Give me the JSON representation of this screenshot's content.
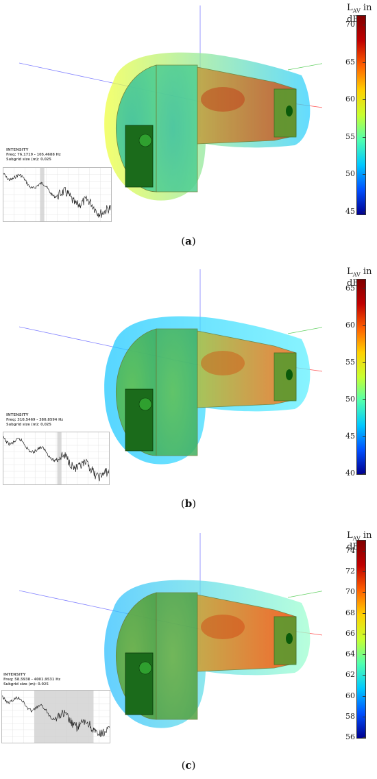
{
  "panels": [
    {
      "id": "a",
      "caption_letter": "a",
      "info_title": "INTENSITY",
      "info_freq": "Freq: 76.1719 - 105.4688 Hz",
      "info_subgrid": "Subgrid size (m): 0.025",
      "colorbar_label": "L",
      "colorbar_sub": "AV",
      "colorbar_unit": " in dB",
      "colorbar_ticks": [
        "70",
        "65",
        "60",
        "55",
        "50",
        "45"
      ],
      "scheme": "a",
      "band": [
        0.34,
        0.38
      ]
    },
    {
      "id": "b",
      "caption_letter": "b",
      "info_title": "INTENSITY",
      "info_freq": "Freq: 310.5469 - 380.8594 Hz",
      "info_subgrid": "Subgrid size (m): 0.025",
      "colorbar_label": "L",
      "colorbar_sub": "AV",
      "colorbar_unit": " in dB",
      "colorbar_ticks": [
        "65",
        "60",
        "55",
        "50",
        "45",
        "40"
      ],
      "scheme": "b",
      "band": [
        0.51,
        0.55
      ]
    },
    {
      "id": "c",
      "caption_letter": "c",
      "info_title": "INTENSITY",
      "info_freq": "Freq: 58.5938 - 4001.9531 Hz",
      "info_subgrid": "Subgrid size (m): 0.025",
      "colorbar_label": "L",
      "colorbar_sub": "AV",
      "colorbar_unit": " in dB",
      "colorbar_ticks": [
        "74",
        "72",
        "70",
        "68",
        "66",
        "64",
        "62",
        "60",
        "58",
        "56"
      ],
      "scheme": "c",
      "band": [
        0.3,
        0.85
      ]
    }
  ],
  "colors": {
    "jet": [
      "#00008f",
      "#0050ff",
      "#00c8ff",
      "#50ffb0",
      "#c8ff30",
      "#ffd000",
      "#ff6000",
      "#c00000",
      "#800000"
    ],
    "axis_x": "#ff6060",
    "axis_y": "#60d060",
    "axis_z": "#8080ff"
  }
}
